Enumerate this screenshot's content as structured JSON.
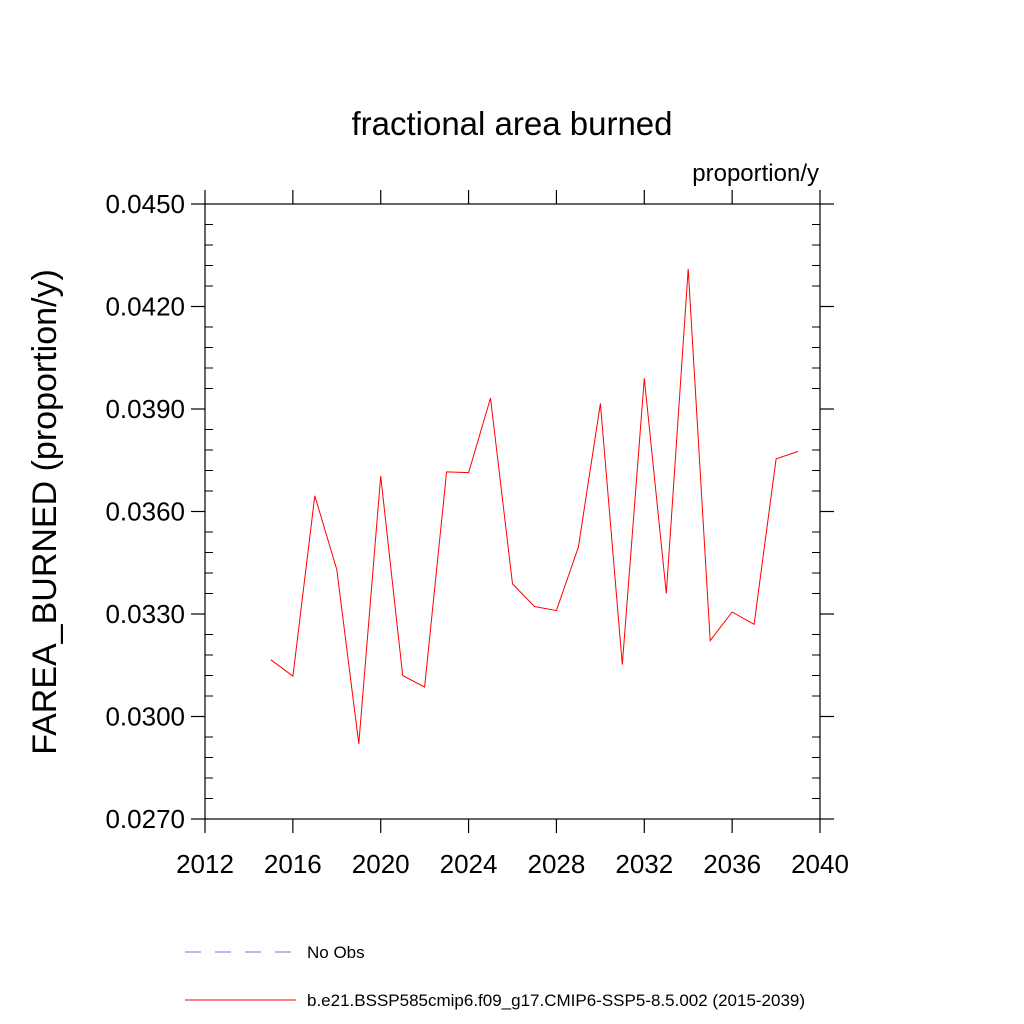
{
  "chart_data": {
    "type": "line",
    "title": "fractional area burned",
    "units": "proportion/y",
    "xlabel": "",
    "ylabel": "FAREA_BURNED  (proportion/y)",
    "xlim": [
      2012,
      2040
    ],
    "ylim": [
      0.027,
      0.045
    ],
    "xticks": [
      2012,
      2016,
      2020,
      2024,
      2028,
      2032,
      2036,
      2040
    ],
    "xtick_labels": [
      "2012",
      "2016",
      "2020",
      "2024",
      "2028",
      "2032",
      "2036",
      "2040"
    ],
    "yticks": [
      0.027,
      0.03,
      0.033,
      0.036,
      0.039,
      0.042,
      0.045
    ],
    "ytick_labels": [
      "0.0270",
      "0.0300",
      "0.0330",
      "0.0360",
      "0.0390",
      "0.0420",
      "0.0450"
    ],
    "grid": false,
    "series": [
      {
        "name": "b.e21.BSSP585cmip6.f09_g17.CMIP6-SSP5-8.5.002 (2015-2039)",
        "color": "#ff0000",
        "style": "solid",
        "x": [
          2015,
          2016,
          2017,
          2018,
          2019,
          2020,
          2021,
          2022,
          2023,
          2024,
          2025,
          2026,
          2027,
          2028,
          2029,
          2030,
          2031,
          2032,
          2033,
          2034,
          2035,
          2036,
          2037,
          2038,
          2039
        ],
        "values": [
          0.03166,
          0.03118,
          0.03646,
          0.0343,
          0.0292,
          0.03704,
          0.0312,
          0.03086,
          0.03716,
          0.03714,
          0.03932,
          0.03388,
          0.03322,
          0.0331,
          0.03496,
          0.03916,
          0.03152,
          0.0399,
          0.0336,
          0.0431,
          0.03222,
          0.03306,
          0.0327,
          0.03754,
          0.03776
        ]
      }
    ],
    "legend": [
      {
        "label": "No Obs",
        "color": "#7b6fd6",
        "style": "dashed"
      },
      {
        "label": "b.e21.BSSP585cmip6.f09_g17.CMIP6-SSP5-8.5.002 (2015-2039)",
        "color": "#ff0000",
        "style": "solid"
      }
    ]
  }
}
